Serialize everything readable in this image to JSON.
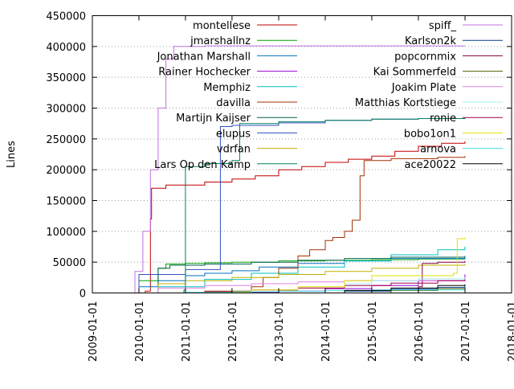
{
  "chart_data": {
    "type": "line",
    "title": "",
    "xlabel": "",
    "ylabel": "Lines",
    "xlim": [
      "2009-01-01",
      "2018-01-01"
    ],
    "ylim": [
      0,
      450000
    ],
    "x_ticks": [
      "2009-01-01",
      "2010-01-01",
      "2011-01-01",
      "2012-01-01",
      "2013-01-01",
      "2014-01-01",
      "2015-01-01",
      "2016-01-01",
      "2017-01-01",
      "2018-01-01"
    ],
    "y_ticks": [
      0,
      50000,
      100000,
      150000,
      200000,
      250000,
      300000,
      350000,
      400000,
      450000
    ],
    "grid": "horizontal-dotted",
    "legend_placement": "top, two columns",
    "series": [
      {
        "name": "montellese",
        "color": "#c00000",
        "points": [
          [
            "2009-10-20",
            0
          ],
          [
            "2010-02-20",
            3000
          ],
          [
            "2010-04-01",
            120000
          ],
          [
            "2010-04-10",
            170000
          ],
          [
            "2010-08-01",
            175000
          ],
          [
            "2011-06-01",
            180000
          ],
          [
            "2012-01-01",
            185000
          ],
          [
            "2012-07-01",
            190000
          ],
          [
            "2013-01-01",
            200000
          ],
          [
            "2013-07-01",
            205000
          ],
          [
            "2014-01-01",
            212000
          ],
          [
            "2014-07-01",
            217000
          ],
          [
            "2015-01-01",
            222000
          ],
          [
            "2015-07-01",
            230000
          ],
          [
            "2016-01-01",
            238000
          ],
          [
            "2016-07-01",
            243000
          ],
          [
            "2016-12-31",
            246000
          ]
        ]
      },
      {
        "name": "jmarshallnz",
        "color": "#00a000",
        "points": [
          [
            "2009-10-01",
            0
          ],
          [
            "2010-01-01",
            20000
          ],
          [
            "2010-06-01",
            40000
          ],
          [
            "2010-08-01",
            47000
          ],
          [
            "2011-01-01",
            48000
          ],
          [
            "2011-06-01",
            49000
          ],
          [
            "2012-01-01",
            50000
          ],
          [
            "2013-01-01",
            52000
          ],
          [
            "2014-01-01",
            53000
          ],
          [
            "2015-01-01",
            54000
          ],
          [
            "2016-01-01",
            55000
          ],
          [
            "2016-12-31",
            56000
          ]
        ]
      },
      {
        "name": "Jonathan Marshall",
        "color": "#0070c0",
        "points": [
          [
            "2009-10-01",
            0
          ],
          [
            "2010-01-01",
            10000
          ],
          [
            "2010-06-01",
            20000
          ],
          [
            "2011-01-01",
            28000
          ],
          [
            "2011-06-01",
            32000
          ],
          [
            "2012-01-01",
            36000
          ],
          [
            "2012-08-01",
            42000
          ],
          [
            "2013-06-01",
            48000
          ],
          [
            "2014-06-01",
            52000
          ],
          [
            "2015-06-01",
            56000
          ],
          [
            "2016-12-31",
            58000
          ]
        ]
      },
      {
        "name": "Rainer Hochecker",
        "color": "#9400d3",
        "points": [
          [
            "2011-06-01",
            0
          ],
          [
            "2012-01-01",
            1000
          ],
          [
            "2013-01-01",
            3000
          ],
          [
            "2014-01-01",
            7000
          ],
          [
            "2015-01-01",
            12000
          ],
          [
            "2016-01-01",
            20000
          ],
          [
            "2016-12-31",
            30000
          ]
        ]
      },
      {
        "name": "Memphiz",
        "color": "#00c0c0",
        "points": [
          [
            "2009-10-01",
            0
          ],
          [
            "2010-06-01",
            10000
          ],
          [
            "2011-06-01",
            22000
          ],
          [
            "2012-06-01",
            32000
          ],
          [
            "2013-06-01",
            42000
          ],
          [
            "2014-06-01",
            52000
          ],
          [
            "2015-06-01",
            62000
          ],
          [
            "2016-06-01",
            70000
          ],
          [
            "2016-12-31",
            75000
          ]
        ]
      },
      {
        "name": "davilla",
        "color": "#a03000",
        "points": [
          [
            "2009-09-01",
            0
          ],
          [
            "2011-06-01",
            3000
          ],
          [
            "2012-06-01",
            10000
          ],
          [
            "2012-09-01",
            25000
          ],
          [
            "2013-01-01",
            40000
          ],
          [
            "2013-06-01",
            60000
          ],
          [
            "2013-09-01",
            70000
          ],
          [
            "2014-01-01",
            85000
          ],
          [
            "2014-03-01",
            90000
          ],
          [
            "2014-06-01",
            100000
          ],
          [
            "2014-08-01",
            118000
          ],
          [
            "2014-10-01",
            190000
          ],
          [
            "2014-11-01",
            215000
          ],
          [
            "2015-06-01",
            218000
          ],
          [
            "2016-06-01",
            220000
          ],
          [
            "2016-12-31",
            222000
          ]
        ]
      },
      {
        "name": "Martijn Kaijser",
        "color": "#006050",
        "points": [
          [
            "2009-10-01",
            0
          ],
          [
            "2010-06-01",
            40000
          ],
          [
            "2010-09-01",
            45000
          ],
          [
            "2011-06-01",
            47000
          ],
          [
            "2012-06-01",
            50000
          ],
          [
            "2013-06-01",
            53000
          ],
          [
            "2014-06-01",
            56000
          ],
          [
            "2015-06-01",
            58000
          ],
          [
            "2016-12-31",
            60000
          ]
        ]
      },
      {
        "name": "elupus",
        "color": "#3050c0",
        "points": [
          [
            "2009-10-01",
            0
          ],
          [
            "2010-01-01",
            30000
          ],
          [
            "2011-01-01",
            38000
          ],
          [
            "2011-10-01",
            40000
          ],
          [
            "2011-10-02",
            270000
          ],
          [
            "2012-01-01",
            272000
          ],
          [
            "2013-01-01",
            276000
          ],
          [
            "2014-01-01",
            280000
          ],
          [
            "2015-01-01",
            282000
          ],
          [
            "2016-01-01",
            283000
          ],
          [
            "2016-12-31",
            284000
          ]
        ]
      },
      {
        "name": "vdrfan",
        "color": "#c0b000",
        "points": [
          [
            "2009-10-01",
            0
          ],
          [
            "2010-06-01",
            15000
          ],
          [
            "2011-01-01",
            20000
          ],
          [
            "2012-01-01",
            25000
          ],
          [
            "2013-01-01",
            30000
          ],
          [
            "2014-01-01",
            35000
          ],
          [
            "2015-01-01",
            40000
          ],
          [
            "2016-01-01",
            45000
          ],
          [
            "2016-12-31",
            47000
          ]
        ]
      },
      {
        "name": "Lars Op den Kamp",
        "color": "#008060",
        "points": [
          [
            "2010-01-01",
            0
          ],
          [
            "2010-12-20",
            5000
          ],
          [
            "2011-01-01",
            205000
          ],
          [
            "2011-06-01",
            210000
          ],
          [
            "2012-01-01",
            215000
          ],
          [
            "2012-03-01",
            275000
          ],
          [
            "2013-01-01",
            278000
          ],
          [
            "2014-01-01",
            280000
          ],
          [
            "2015-01-01",
            282000
          ],
          [
            "2016-01-01",
            283000
          ],
          [
            "2016-12-31",
            284000
          ]
        ]
      },
      {
        "name": "spiff_",
        "color": "#c070e0",
        "points": [
          [
            "2009-11-01",
            0
          ],
          [
            "2009-12-01",
            35000
          ],
          [
            "2010-02-01",
            100000
          ],
          [
            "2010-04-01",
            200000
          ],
          [
            "2010-06-01",
            300000
          ],
          [
            "2010-08-01",
            380000
          ],
          [
            "2010-10-01",
            400000
          ],
          [
            "2011-06-01",
            401000
          ],
          [
            "2012-06-01",
            401000
          ],
          [
            "2013-06-01",
            401000
          ],
          [
            "2014-06-01",
            401000
          ],
          [
            "2015-06-01",
            401000
          ],
          [
            "2016-12-31",
            401000
          ]
        ]
      },
      {
        "name": "Karlson2k",
        "color": "#0a3c8c",
        "points": [
          [
            "2013-06-01",
            0
          ],
          [
            "2014-06-01",
            3000
          ],
          [
            "2015-06-01",
            6000
          ],
          [
            "2016-06-01",
            9000
          ],
          [
            "2016-12-31",
            12000
          ]
        ]
      },
      {
        "name": "popcornmix",
        "color": "#800040",
        "points": [
          [
            "2015-06-01",
            0
          ],
          [
            "2016-01-01",
            10000
          ],
          [
            "2016-02-01",
            48000
          ],
          [
            "2016-06-01",
            50000
          ],
          [
            "2016-12-31",
            52000
          ]
        ]
      },
      {
        "name": "Kai Sommerfeld",
        "color": "#506000",
        "points": [
          [
            "2014-06-01",
            0
          ],
          [
            "2015-06-01",
            4000
          ],
          [
            "2016-06-01",
            7000
          ],
          [
            "2016-12-31",
            9000
          ]
        ]
      },
      {
        "name": "Joakim Plate",
        "color": "#e080e0",
        "points": [
          [
            "2009-10-01",
            0
          ],
          [
            "2010-06-01",
            8000
          ],
          [
            "2011-06-01",
            12000
          ],
          [
            "2012-06-01",
            15000
          ],
          [
            "2013-06-01",
            18000
          ],
          [
            "2014-06-01",
            20000
          ],
          [
            "2016-12-31",
            22000
          ]
        ]
      },
      {
        "name": "Matthias Kortstiege",
        "color": "#a0f0f0",
        "points": [
          [
            "2014-01-01",
            0
          ],
          [
            "2014-06-01",
            15000
          ],
          [
            "2015-01-01",
            20000
          ],
          [
            "2016-01-01",
            23000
          ],
          [
            "2016-12-31",
            25000
          ]
        ]
      },
      {
        "name": "ronie",
        "color": "#a00050",
        "points": [
          [
            "2009-10-01",
            0
          ],
          [
            "2011-06-01",
            2000
          ],
          [
            "2012-06-01",
            5000
          ],
          [
            "2013-06-01",
            8000
          ],
          [
            "2014-06-01",
            12000
          ],
          [
            "2015-06-01",
            16000
          ],
          [
            "2016-06-01",
            20000
          ],
          [
            "2016-12-31",
            22000
          ]
        ]
      },
      {
        "name": "bobo1on1",
        "color": "#e0e000",
        "points": [
          [
            "2009-10-01",
            0
          ],
          [
            "2011-06-01",
            1000
          ],
          [
            "2012-06-01",
            5000
          ],
          [
            "2013-06-01",
            10000
          ],
          [
            "2014-06-01",
            20000
          ],
          [
            "2015-01-01",
            28000
          ],
          [
            "2016-10-01",
            32000
          ],
          [
            "2016-11-01",
            88000
          ],
          [
            "2016-12-31",
            90000
          ]
        ]
      },
      {
        "name": "arnova",
        "color": "#40e0e0",
        "points": [
          [
            "2010-01-01",
            0
          ],
          [
            "2011-01-01",
            1000
          ],
          [
            "2012-01-01",
            2000
          ],
          [
            "2013-01-01",
            3000
          ],
          [
            "2014-01-01",
            4000
          ],
          [
            "2015-01-01",
            5000
          ],
          [
            "2016-12-31",
            6000
          ]
        ]
      },
      {
        "name": "ace20022",
        "color": "#000000",
        "points": [
          [
            "2013-06-01",
            0
          ],
          [
            "2014-06-01",
            4000
          ],
          [
            "2015-06-01",
            8000
          ],
          [
            "2016-06-01",
            12000
          ],
          [
            "2016-12-31",
            14000
          ]
        ]
      }
    ]
  }
}
